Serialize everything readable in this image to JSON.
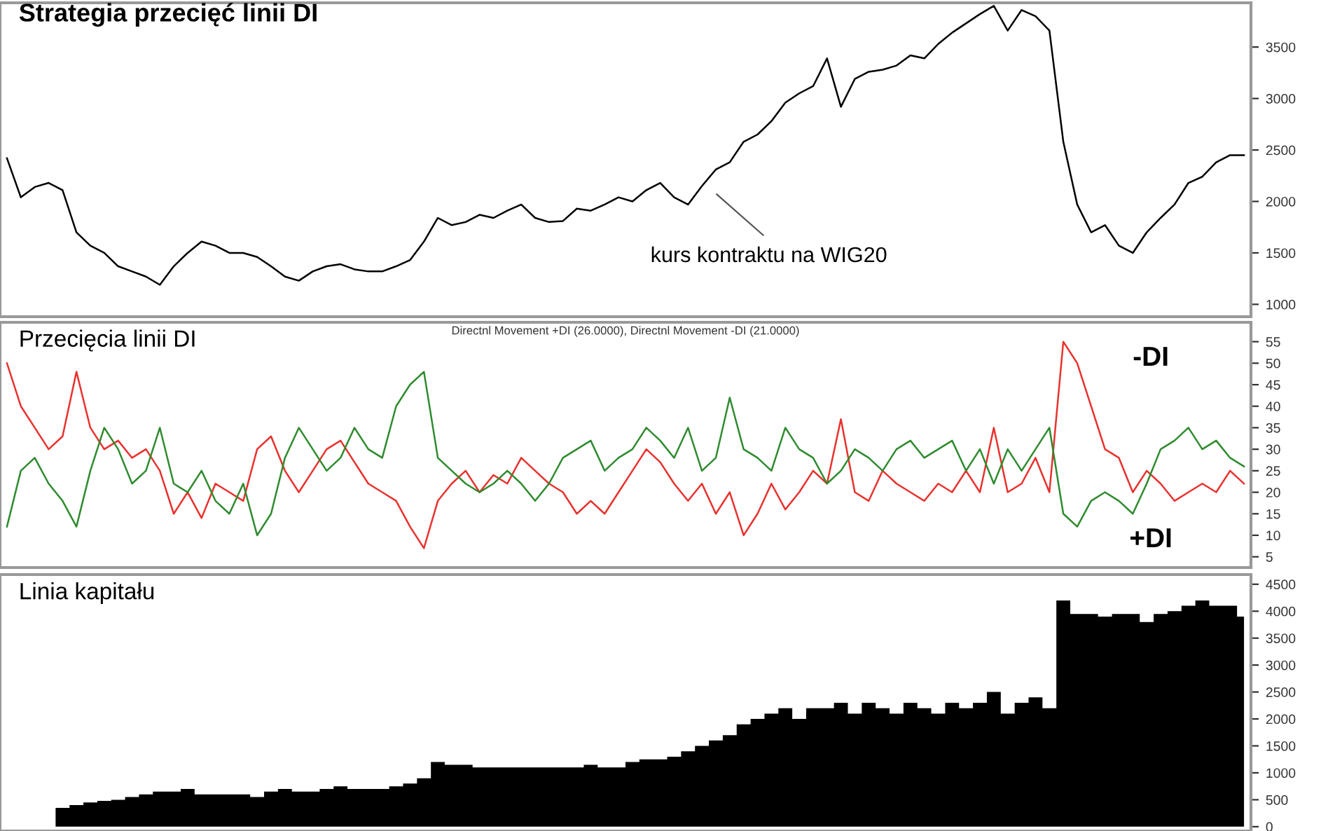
{
  "chart_data": [
    {
      "type": "line",
      "title": "Strategia przecięć linii DI",
      "categories": [
        null,
        null,
        null,
        null,
        null,
        null,
        null,
        null,
        null,
        null,
        null,
        null,
        null,
        null,
        null,
        null,
        null,
        null,
        null,
        null,
        null,
        null,
        null,
        null,
        null,
        null,
        null,
        null,
        null,
        null,
        null,
        null,
        null,
        null,
        null,
        null,
        null,
        null,
        null,
        null,
        null,
        null,
        null,
        null,
        null,
        null,
        null,
        null,
        null,
        null,
        null,
        null,
        null,
        null,
        null,
        null,
        null,
        null,
        null,
        null,
        null,
        null,
        null,
        null,
        null,
        null,
        null,
        null,
        null,
        null,
        null,
        null,
        null,
        null,
        null,
        null,
        null,
        null,
        null,
        null,
        null,
        null,
        null,
        null,
        null,
        null,
        null,
        null,
        null,
        null
      ],
      "series": [
        {
          "color": "#000000",
          "values": [
            2420,
            2040,
            2140,
            2180,
            2110,
            1700,
            1570,
            1500,
            1370,
            1320,
            1270,
            1190,
            1370,
            1500,
            1610,
            1570,
            1500,
            1500,
            1460,
            1370,
            1270,
            1230,
            1320,
            1370,
            1390,
            1340,
            1320,
            1320,
            1370,
            1430,
            1610,
            1840,
            1770,
            1800,
            1870,
            1840,
            1910,
            1970,
            1840,
            1800,
            1810,
            1930,
            1910,
            1970,
            2040,
            2000,
            2110,
            2180,
            2040,
            1970,
            2150,
            2310,
            2380,
            2580,
            2650,
            2780,
            2960,
            3050,
            3120,
            3390,
            2920,
            3190,
            3260,
            3280,
            3320,
            3420,
            3390,
            3530,
            3640,
            3730,
            3820,
            3900,
            3660,
            3860,
            3800,
            3660,
            2580,
            1970,
            1700,
            1770,
            1570,
            1500,
            1700,
            1840,
            1970,
            2180,
            2240,
            2380,
            2450,
            2450
          ]
        }
      ],
      "annotations": [
        "kurs kontraktu na WIG20"
      ],
      "ylim": [
        880,
        3930
      ],
      "yticks": [
        1000,
        1500,
        2000,
        2500,
        3000,
        3500
      ],
      "tick_labels": "y",
      "grid": false,
      "legend": false
    },
    {
      "type": "line",
      "title": "Przecięcia linii DI",
      "subtitle": "Directnl Movement +DI (26.0000), Directnl Movement -DI (21.0000)",
      "categories": [
        null,
        null,
        null,
        null,
        null,
        null,
        null,
        null,
        null,
        null,
        null,
        null,
        null,
        null,
        null,
        null,
        null,
        null,
        null,
        null,
        null,
        null,
        null,
        null,
        null,
        null,
        null,
        null,
        null,
        null,
        null,
        null,
        null,
        null,
        null,
        null,
        null,
        null,
        null,
        null,
        null,
        null,
        null,
        null,
        null,
        null,
        null,
        null,
        null,
        null,
        null,
        null,
        null,
        null,
        null,
        null,
        null,
        null,
        null,
        null,
        null,
        null,
        null,
        null,
        null,
        null,
        null,
        null,
        null,
        null,
        null,
        null,
        null,
        null,
        null,
        null,
        null,
        null,
        null,
        null,
        null,
        null,
        null,
        null,
        null,
        null,
        null,
        null,
        null,
        null
      ],
      "series": [
        {
          "name": "-DI",
          "color": "#e8322e",
          "values": [
            50,
            40,
            35,
            30,
            33,
            48,
            35,
            30,
            32,
            28,
            30,
            25,
            15,
            20,
            14,
            22,
            20,
            18,
            30,
            33,
            25,
            20,
            25,
            30,
            32,
            27,
            22,
            20,
            18,
            12,
            7,
            18,
            22,
            25,
            20,
            24,
            22,
            28,
            25,
            22,
            20,
            15,
            18,
            15,
            20,
            25,
            30,
            27,
            22,
            18,
            22,
            15,
            20,
            10,
            15,
            22,
            16,
            20,
            25,
            22,
            37,
            20,
            18,
            25,
            22,
            20,
            18,
            22,
            20,
            25,
            20,
            35,
            20,
            22,
            28,
            20,
            55,
            50,
            40,
            30,
            28,
            20,
            25,
            22,
            18,
            20,
            22,
            20,
            25,
            22
          ]
        },
        {
          "name": "+DI",
          "color": "#2e8b2e",
          "values": [
            12,
            25,
            28,
            22,
            18,
            12,
            25,
            35,
            30,
            22,
            25,
            35,
            22,
            20,
            25,
            18,
            15,
            22,
            10,
            15,
            28,
            35,
            30,
            25,
            28,
            35,
            30,
            28,
            40,
            45,
            48,
            28,
            25,
            22,
            20,
            22,
            25,
            22,
            18,
            22,
            28,
            30,
            32,
            25,
            28,
            30,
            35,
            32,
            28,
            35,
            25,
            28,
            42,
            30,
            28,
            25,
            35,
            30,
            28,
            22,
            25,
            30,
            28,
            25,
            30,
            32,
            28,
            30,
            32,
            25,
            30,
            22,
            30,
            25,
            30,
            35,
            15,
            12,
            18,
            20,
            18,
            15,
            22,
            30,
            32,
            35,
            30,
            32,
            28,
            26
          ]
        }
      ],
      "ylim": [
        2.5,
        59.5
      ],
      "yticks": [
        5,
        10,
        15,
        20,
        25,
        30,
        35,
        40,
        45,
        50,
        55
      ],
      "tick_labels": "y",
      "grid": false,
      "legend": false
    },
    {
      "type": "area",
      "title": "Linia kapitału",
      "categories": [
        null,
        null,
        null,
        null,
        null,
        null,
        null,
        null,
        null,
        null,
        null,
        null,
        null,
        null,
        null,
        null,
        null,
        null,
        null,
        null,
        null,
        null,
        null,
        null,
        null,
        null,
        null,
        null,
        null,
        null,
        null,
        null,
        null,
        null,
        null,
        null,
        null,
        null,
        null,
        null,
        null,
        null,
        null,
        null,
        null,
        null,
        null,
        null,
        null,
        null,
        null,
        null,
        null,
        null,
        null,
        null,
        null,
        null,
        null,
        null,
        null,
        null,
        null,
        null,
        null,
        null,
        null,
        null,
        null,
        null,
        null,
        null,
        null,
        null,
        null,
        null,
        null,
        null,
        null,
        null,
        null,
        null,
        null,
        null,
        null,
        null,
        null,
        null,
        null,
        null
      ],
      "series": [
        {
          "color": "#000000",
          "values": [
            0,
            0,
            0,
            0,
            350,
            400,
            450,
            480,
            500,
            550,
            600,
            650,
            650,
            700,
            600,
            600,
            600,
            600,
            550,
            650,
            700,
            650,
            650,
            700,
            750,
            700,
            700,
            700,
            750,
            800,
            900,
            1200,
            1150,
            1150,
            1100,
            1100,
            1100,
            1100,
            1100,
            1100,
            1100,
            1100,
            1150,
            1100,
            1100,
            1200,
            1250,
            1250,
            1300,
            1400,
            1500,
            1600,
            1700,
            1900,
            2000,
            2100,
            2200,
            2000,
            2200,
            2200,
            2300,
            2100,
            2300,
            2200,
            2100,
            2300,
            2200,
            2100,
            2300,
            2200,
            2300,
            2500,
            2100,
            2300,
            2400,
            2200,
            4200,
            3950,
            3950,
            3900,
            3950,
            3950,
            3800,
            3950,
            4000,
            4100,
            4200,
            4100,
            4100,
            3900
          ]
        }
      ],
      "ylim": [
        -80,
        4680
      ],
      "yticks": [
        0,
        500,
        1000,
        1500,
        2000,
        2500,
        3000,
        3500,
        4000,
        4500
      ],
      "tick_labels": "y",
      "grid": false,
      "legend": false
    }
  ]
}
